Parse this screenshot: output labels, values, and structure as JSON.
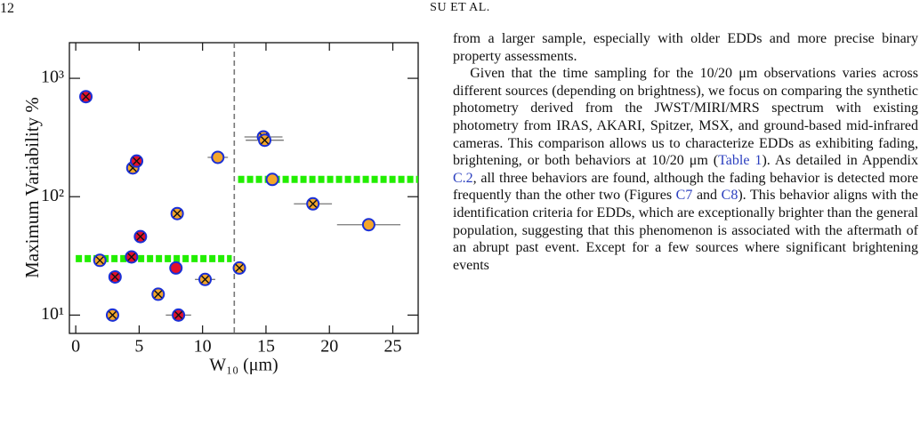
{
  "header": {
    "page_number": "12",
    "running_head": "SU ET AL."
  },
  "chart_data": {
    "type": "scatter",
    "x_label": "W₁₀ (μm)",
    "y_label": "Maximum Variability %",
    "xlim": [
      -0.5,
      27
    ],
    "xticks": [
      0,
      5,
      10,
      15,
      20,
      25
    ],
    "ylim": [
      7,
      2000
    ],
    "y_log": true,
    "yticks": [
      {
        "value": 10,
        "label": "10¹"
      },
      {
        "value": 100,
        "label": "10²"
      },
      {
        "value": 1000,
        "label": "10³"
      }
    ],
    "x": [
      0.8,
      1.9,
      3.1,
      2.9,
      4.4,
      4.5,
      4.8,
      5.1,
      6.5,
      7.9,
      8.0,
      8.1,
      10.2,
      11.2,
      12.9,
      14.8,
      14.9,
      15.5,
      18.7,
      23.1
    ],
    "values": [
      700,
      29,
      21,
      10,
      31,
      175,
      200,
      46,
      15,
      25,
      72,
      10,
      20,
      215,
      25,
      320,
      300,
      140,
      87,
      58
    ],
    "xerr": [
      null,
      null,
      null,
      null,
      null,
      null,
      null,
      null,
      null,
      null,
      null,
      1.0,
      0.8,
      0.8,
      null,
      1.5,
      1.5,
      null,
      1.5,
      2.5
    ],
    "colors": [
      "#e3102b",
      "#f4a62a",
      "#e3102b",
      "#f4a62a",
      "#e3102b",
      "#f4a62a",
      "#e3102b",
      "#e3102b",
      "#f4a62a",
      "#e3102b",
      "#f4a62a",
      "#e3102b",
      "#f4a62a",
      "#f4a62a",
      "#f4a62a",
      "#f4a62a",
      "#f4a62a",
      "#f4a62a",
      "#f4a62a",
      "#f4a62a"
    ],
    "crossed": [
      true,
      true,
      true,
      true,
      true,
      true,
      true,
      true,
      true,
      false,
      true,
      true,
      true,
      false,
      true,
      true,
      true,
      false,
      true,
      false
    ],
    "marker_edge_color": "#1a2fd6",
    "medians": [
      {
        "x": [
          0,
          12.3
        ],
        "value": 30
      },
      {
        "x": [
          12.8,
          27
        ],
        "value": 140
      }
    ],
    "median_color": "#22ee00",
    "divider_x": 12.5
  },
  "body": {
    "paragraphs": [
      [
        "from a larger sample, especially with older EDDs and more precise binary property assessments."
      ],
      [
        "Given that the time sampling for the 10/20 μm observations varies across different sources (depending on brightness), we focus on comparing the synthetic photometry derived from the JWST/MIRI/MRS spectrum with existing photometry from IRAS, AKARI, Spitzer, MSX, and ground-based mid-infrared cameras. This comparison allows us to characterize EDDs as exhibiting fading, brightening, or both behaviors at 10/20 μm (",
        {
          "text": "Table 1",
          "link": true
        },
        "). As detailed in Appendix ",
        {
          "text": "C.2",
          "link": true
        },
        ", all three behaviors are found, although the fading behavior is detected more frequently than the other two (Figures ",
        {
          "text": "C7",
          "link": true
        },
        " and ",
        {
          "text": "C8",
          "link": true
        },
        "). This behavior aligns with the identification criteria for EDDs, which are exceptionally brighter than the general population, suggesting that this phenomenon is associated with the aftermath of an abrupt past event. Except for a few sources where significant brightening events"
      ]
    ]
  }
}
